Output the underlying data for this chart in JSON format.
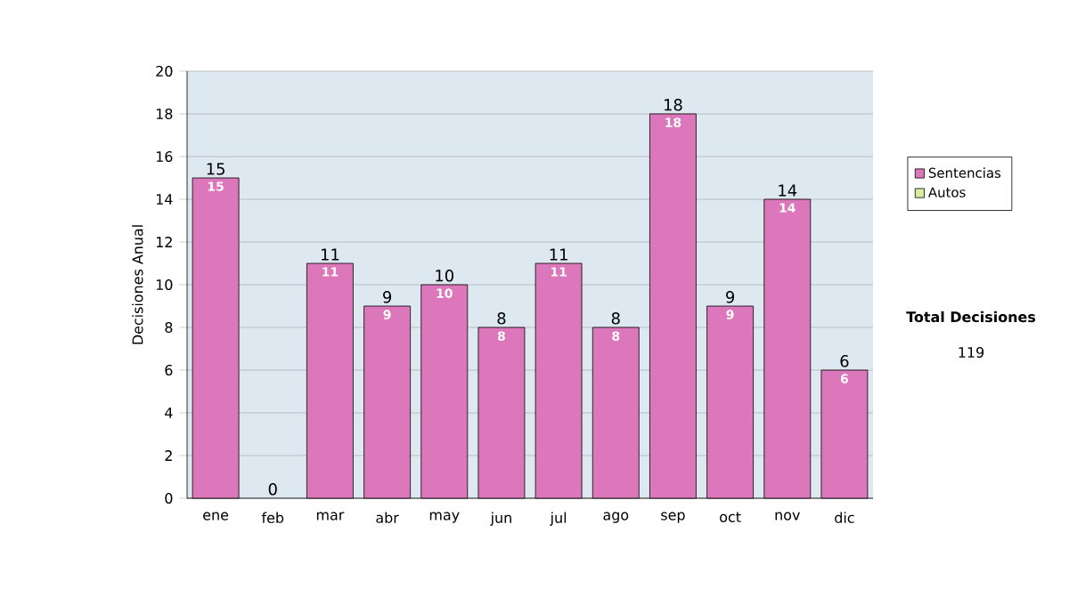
{
  "chart_data": {
    "type": "bar",
    "stacked": true,
    "ylabel": "Decisiones Anual",
    "categories": [
      "ene",
      "feb",
      "mar",
      "abr",
      "may",
      "jun",
      "jul",
      "ago",
      "sep",
      "oct",
      "nov",
      "dic"
    ],
    "series": [
      {
        "name": "Sentencias",
        "color": "#dd77bb",
        "values": [
          15,
          0,
          11,
          9,
          10,
          8,
          11,
          8,
          18,
          9,
          14,
          6
        ],
        "value_labels": [
          "15",
          null,
          "11",
          "9",
          "10",
          "8",
          "11",
          "8",
          "18",
          "9",
          "14",
          "6"
        ]
      },
      {
        "name": "Autos",
        "color": "#d8eca0",
        "values": [
          0,
          0,
          0,
          0,
          0,
          0,
          0,
          0,
          0,
          0,
          0,
          0
        ]
      }
    ],
    "totals": [
      "15",
      "0",
      "11",
      "9",
      "10",
      "8",
      "11",
      "8",
      "18",
      "9",
      "14",
      "6"
    ],
    "ylim": [
      0,
      20
    ],
    "yticks": [
      0,
      2,
      4,
      6,
      8,
      10,
      12,
      14,
      16,
      18,
      20
    ],
    "grid": "y",
    "legend": "right",
    "annotations": [
      "Total Decisiones",
      "119"
    ]
  }
}
